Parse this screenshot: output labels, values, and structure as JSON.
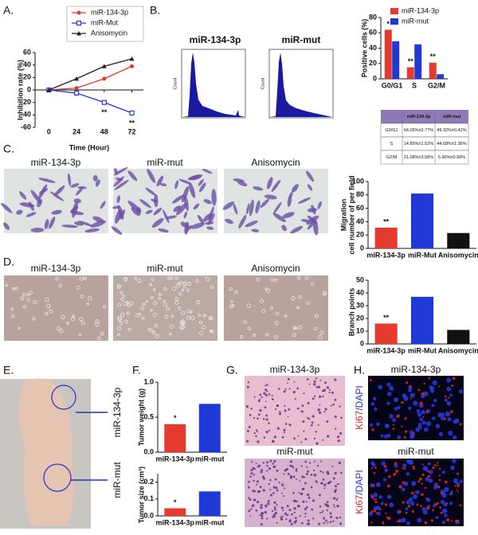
{
  "panel_labels": [
    "A.",
    "B.",
    "C.",
    "D.",
    "E.",
    "F.",
    "G.",
    "H."
  ],
  "flow": {
    "titles": [
      "miR-134-3p",
      "miR-mut"
    ],
    "ylabel": "Count"
  },
  "table": {
    "header": [
      "miR-134-3p",
      "miR-mut"
    ],
    "rows": [
      [
        "G0/G1",
        "64.05%±2.77%",
        "49.32%±0.42%"
      ],
      [
        "S",
        "14.85%±1.52%",
        "44.68%±1.36%"
      ],
      [
        "G2/M",
        "21.08%±3.58%",
        "5.90%±0.99%"
      ]
    ]
  },
  "images": {
    "C": [
      "miR-134-3p",
      "miR-mut",
      "Anisomycin"
    ],
    "D": [
      "miR-134-3p",
      "miR-mut",
      "Anisomycin"
    ],
    "E": [
      "miR-134-3p",
      "miR-mut"
    ],
    "G": [
      "miR-134-3p",
      "miR-mut"
    ],
    "H": [
      "miR-134-3p",
      "miR-mut"
    ],
    "H_stain": [
      "Ki67",
      "/DAPI"
    ]
  },
  "chart_data": [
    {
      "type": "line",
      "ylabel": "Inhibition rate (%)",
      "xlabel": "Time (Hour)",
      "x": [
        0,
        24,
        48,
        72
      ],
      "xlim": [
        -12,
        82
      ],
      "xticks": [
        0,
        24,
        48,
        72
      ],
      "ylim": [
        -60,
        60
      ],
      "yticks": [
        -60,
        -40,
        -20,
        0,
        20,
        40,
        60
      ],
      "grid": false,
      "legend": "top",
      "series": [
        {
          "name": "miR-134-3p",
          "color": "#e53a2e",
          "marker": "circle",
          "values": [
            0,
            3,
            18,
            38
          ]
        },
        {
          "name": "miR-Mut",
          "color": "#2039d6",
          "marker": "square",
          "values": [
            0,
            -5,
            -20,
            -37
          ],
          "annotations": [
            null,
            null,
            "**",
            "**"
          ]
        },
        {
          "name": "Anisomycin",
          "color": "#222222",
          "marker": "triangle",
          "values": [
            0,
            18,
            38,
            50
          ]
        }
      ]
    },
    {
      "type": "bar",
      "ylabel": "Positive cells (%)",
      "categories": [
        "G0/G1",
        "S",
        "G2/M"
      ],
      "ylim": [
        0,
        80
      ],
      "yticks": [
        0,
        20,
        40,
        60,
        80
      ],
      "grid": false,
      "legend": "top",
      "series": [
        {
          "name": "miR-134-3p",
          "color": "#e53a2e",
          "values": [
            64,
            15,
            21
          ],
          "annotations": [
            "*",
            "**",
            "**"
          ]
        },
        {
          "name": "miR-mut",
          "color": "#2039d6",
          "values": [
            49,
            45,
            6
          ]
        }
      ]
    },
    {
      "type": "bar",
      "ylabel": [
        "Migration",
        "cell number of per field"
      ],
      "categories": [
        "miR-134-3p",
        "miR-Mut",
        "Anisomycin"
      ],
      "values": [
        31,
        82,
        23
      ],
      "colors": [
        "#e53a2e",
        "#2039d6",
        "#111111"
      ],
      "annotations": [
        "**",
        null,
        null
      ],
      "ylim": [
        0,
        100
      ],
      "yticks": [
        0,
        20,
        40,
        60,
        80,
        100
      ],
      "grid": false
    },
    {
      "type": "bar",
      "ylabel": "Branch points",
      "categories": [
        "miR-134-3p",
        "miR-Mut",
        "Anisomycin"
      ],
      "values": [
        16,
        37,
        11
      ],
      "colors": [
        "#e53a2e",
        "#2039d6",
        "#111111"
      ],
      "annotations": [
        "**",
        null,
        null
      ],
      "ylim": [
        0,
        50
      ],
      "yticks": [
        0,
        10,
        20,
        30,
        40,
        50
      ],
      "grid": false
    },
    {
      "type": "bar",
      "ylabel": "Tumor weight (g)",
      "categories": [
        "miR-134-3p",
        "miR-mut"
      ],
      "values": [
        0.4,
        0.69
      ],
      "colors": [
        "#e53a2e",
        "#2039d6"
      ],
      "annotations": [
        "*",
        null
      ],
      "ylim": [
        0,
        1
      ],
      "yticks": [
        {
          "value": 0,
          "label": "0.0"
        },
        {
          "value": 0.5,
          "label": "0.5"
        },
        {
          "value": 1,
          "label": "1.0"
        }
      ],
      "grid": false
    },
    {
      "type": "bar",
      "ylabel": "Tumor size (cm³)",
      "categories": [
        "miR-134-3p",
        "miR-mut"
      ],
      "values": [
        0.045,
        0.145
      ],
      "colors": [
        "#e53a2e",
        "#2039d6"
      ],
      "annotations": [
        "*",
        null
      ],
      "ylim": [
        0,
        0.25
      ],
      "yticks": [
        {
          "value": 0,
          "label": "0.0"
        },
        {
          "value": 0.1,
          "label": "0.1"
        },
        {
          "value": 0.2,
          "label": "0.2"
        }
      ],
      "grid": false
    }
  ]
}
